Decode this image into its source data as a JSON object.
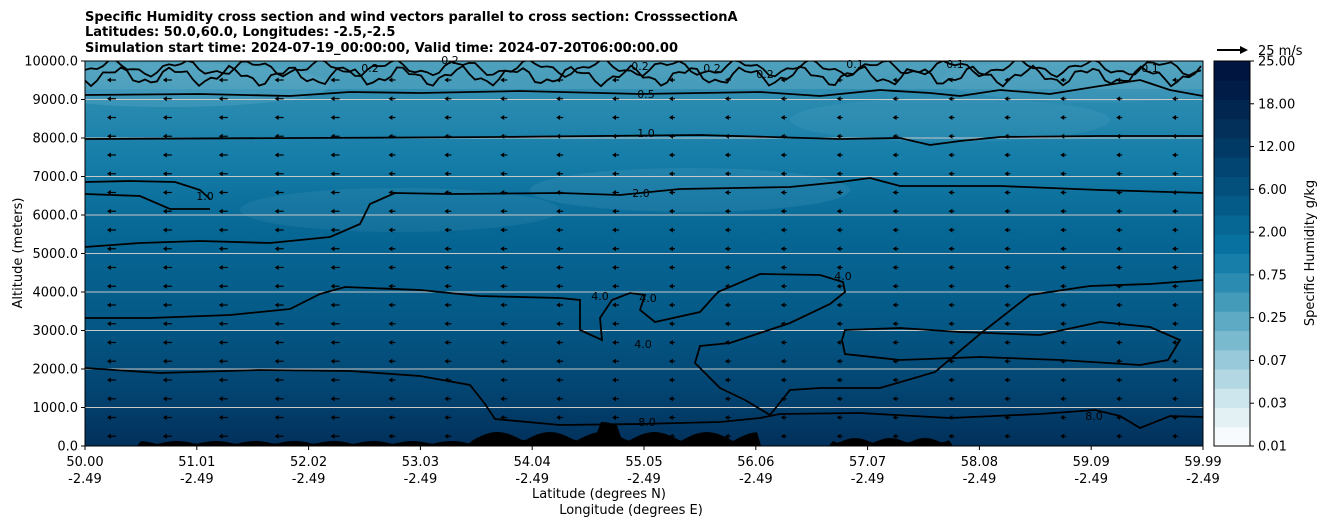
{
  "chart_data": {
    "type": "contourf",
    "title_lines": [
      "Specific Humidity cross section and wind vectors parallel to cross section: CrosssectionA",
      "Latitudes: 50.0,60.0, Longitudes: -2.5,-2.5",
      "Simulation start time: 2024-07-19_00:00:00, Valid time: 2024-07-20T06:00:00.00"
    ],
    "ylabel": "Altitude (meters)",
    "xlabel_lines": [
      "Latitude (degrees N)",
      "Longitude (degrees E)"
    ],
    "ylim": [
      0,
      10000
    ],
    "xlim": [
      50.0,
      59.99
    ],
    "y_ticks": [
      "0.0",
      "1000.0",
      "2000.0",
      "3000.0",
      "4000.0",
      "5000.0",
      "6000.0",
      "7000.0",
      "8000.0",
      "9000.0",
      "10000.0"
    ],
    "y_tick_values": [
      0,
      1000,
      2000,
      3000,
      4000,
      5000,
      6000,
      7000,
      8000,
      9000,
      10000
    ],
    "x_ticks": [
      {
        "lat": "50.00",
        "lon": "-2.49"
      },
      {
        "lat": "51.01",
        "lon": "-2.49"
      },
      {
        "lat": "52.02",
        "lon": "-2.49"
      },
      {
        "lat": "53.03",
        "lon": "-2.49"
      },
      {
        "lat": "54.04",
        "lon": "-2.49"
      },
      {
        "lat": "55.05",
        "lon": "-2.49"
      },
      {
        "lat": "56.06",
        "lon": "-2.49"
      },
      {
        "lat": "57.07",
        "lon": "-2.49"
      },
      {
        "lat": "58.08",
        "lon": "-2.49"
      },
      {
        "lat": "59.09",
        "lon": "-2.49"
      },
      {
        "lat": "59.99",
        "lon": "-2.49"
      }
    ],
    "grid": "horizontal",
    "colorbar": {
      "label": "Specific Humidity g/kg",
      "tick_labels": [
        "0.01",
        "0.03",
        "0.07",
        "0.25",
        "0.75",
        "2.00",
        "6.00",
        "12.00",
        "18.00",
        "25.00"
      ],
      "colors": [
        "#f7fbfd",
        "#e3f0f4",
        "#cde5ec",
        "#b3d8e4",
        "#97c9da",
        "#7abacf",
        "#5eaac4",
        "#449ab9",
        "#2b8bb0",
        "#167ea9",
        "#08719f",
        "#066694",
        "#055b88",
        "#04507d",
        "#034572",
        "#023a66",
        "#02305b",
        "#012650",
        "#011c46",
        "#001540"
      ]
    },
    "quiver_key": {
      "label": "25 m/s",
      "value": 25
    },
    "contour_levels": [
      {
        "level": 0.1,
        "label": "0.1"
      },
      {
        "level": 0.2,
        "label": "0.2"
      },
      {
        "level": 0.5,
        "label": "0.5"
      },
      {
        "level": 1.0,
        "label": "1.0"
      },
      {
        "level": 2.0,
        "label": "2.0"
      },
      {
        "level": 4.0,
        "label": "4.0"
      },
      {
        "level": 8.0,
        "label": "8.0"
      }
    ]
  }
}
